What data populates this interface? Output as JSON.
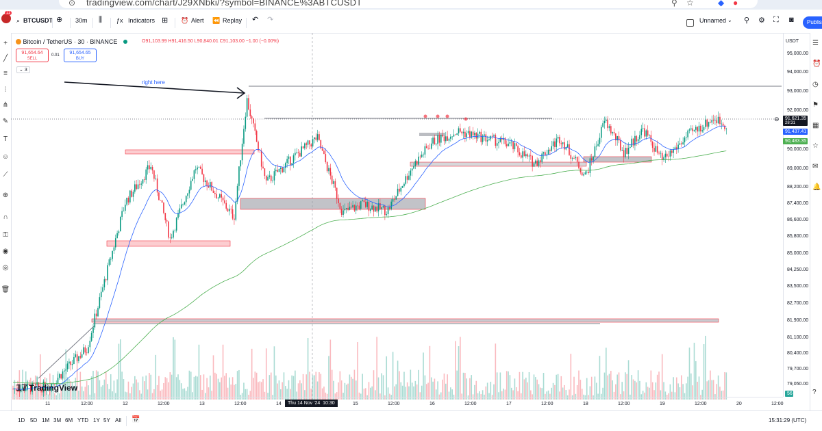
{
  "browser": {
    "url": "tradingview.com/chart/J29XNbki/?symbol=BINANCE%3ABTCUSDT"
  },
  "toolbar": {
    "symbol": "BTCUSDT",
    "interval": "30m",
    "indicators_label": "Indicators",
    "alert_label": "Alert",
    "replay_label": "Replay",
    "layout_name": "Unnamed",
    "publish_label": "Publis",
    "notification_count": "11"
  },
  "legend": {
    "title": "Bitcoin / TetherUS · 30 · BINANCE",
    "ohlc": "O91,103.99 H91,416.50 L90,840.01 C91,103.00 −1.00 (−0.00%)",
    "sell_price": "91,654.64",
    "sell_label": "SELL",
    "spread": "0.01",
    "buy_price": "91,654.65",
    "buy_label": "BUY",
    "collapse_count": "3"
  },
  "annotation": {
    "text": "right here"
  },
  "price_axis": {
    "currency": "USDT",
    "labels": [
      "95,000.00",
      "94,000.00",
      "93,000.00",
      "92,000.00",
      "90,000.00",
      "89,000.00",
      "88,200.00",
      "87,400.00",
      "86,600.00",
      "85,800.00",
      "85,000.00",
      "84,250.00",
      "83,500.00",
      "82,700.00",
      "81,900.00",
      "81,100.00",
      "80,400.00",
      "79,700.00",
      "79,050.00"
    ],
    "last_price": "91,621.35",
    "last_countdown": "28:31",
    "ema_fast": "91,437.41",
    "ema_slow": "90,483.35",
    "volume_tag": "56"
  },
  "time_axis": {
    "labels": [
      "11",
      "12:00",
      "12",
      "12:00",
      "13",
      "12:00",
      "14",
      "15",
      "12:00",
      "16",
      "12:00",
      "17",
      "12:00",
      "18",
      "12:00",
      "19",
      "12:00",
      "20",
      "12:00"
    ],
    "crosshair": "Thu 14 Nov '24",
    "crosshair_time": "10:30"
  },
  "bottom": {
    "ranges": [
      "1D",
      "5D",
      "1M",
      "3M",
      "6M",
      "YTD",
      "1Y",
      "5Y",
      "All"
    ],
    "clock": "15:31:29 (UTC)"
  },
  "brand": {
    "logo_text": "TradingView"
  },
  "colors": {
    "up": "#089981",
    "down": "#f23645",
    "ema_fast": "#2962ff",
    "ema_slow": "#4caf50",
    "accent": "#2962ff"
  },
  "chart_data": {
    "type": "candlestick",
    "symbol": "Bitcoin / TetherUS · 30 · BINANCE",
    "ylim": [
      78800,
      95500
    ],
    "grid": false,
    "trend_points": [
      {
        "t": "11 00:00",
        "v": 79400
      },
      {
        "t": "11 12:00",
        "v": 81200
      },
      {
        "t": "12 00:00",
        "v": 88000
      },
      {
        "t": "12 08:00",
        "v": 89700
      },
      {
        "t": "12 14:00",
        "v": 86300
      },
      {
        "t": "12 22:00",
        "v": 89600
      },
      {
        "t": "13 10:00",
        "v": 87300
      },
      {
        "t": "13 14:00",
        "v": 92800
      },
      {
        "t": "13 20:00",
        "v": 88900
      },
      {
        "t": "14 04:00",
        "v": 90000
      },
      {
        "t": "14 12:00",
        "v": 91000
      },
      {
        "t": "14 20:00",
        "v": 87500
      },
      {
        "t": "15 02:00",
        "v": 87900
      },
      {
        "t": "15 10:00",
        "v": 87600
      },
      {
        "t": "15 18:00",
        "v": 89700
      },
      {
        "t": "16 00:00",
        "v": 90800
      },
      {
        "t": "16 08:00",
        "v": 91300
      },
      {
        "t": "16 16:00",
        "v": 91000
      },
      {
        "t": "17 00:00",
        "v": 90700
      },
      {
        "t": "17 08:00",
        "v": 89800
      },
      {
        "t": "17 16:00",
        "v": 91000
      },
      {
        "t": "18 00:00",
        "v": 89200
      },
      {
        "t": "18 06:00",
        "v": 91800
      },
      {
        "t": "18 12:00",
        "v": 90300
      },
      {
        "t": "18 18:00",
        "v": 91400
      },
      {
        "t": "19 00:00",
        "v": 89900
      },
      {
        "t": "19 08:00",
        "v": 91100
      },
      {
        "t": "19 16:00",
        "v": 91900
      },
      {
        "t": "19 20:00",
        "v": 91600
      }
    ]
  }
}
